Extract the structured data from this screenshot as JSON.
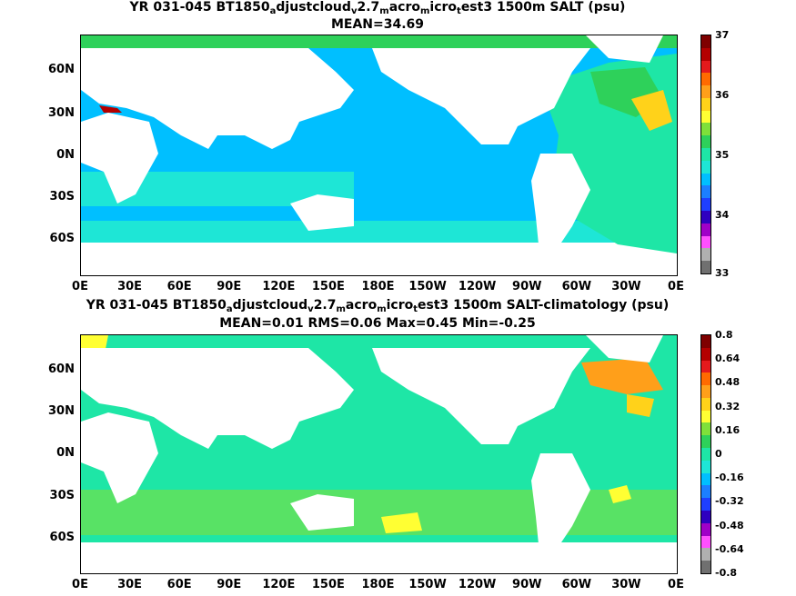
{
  "top_panel": {
    "title_parts": [
      "YR 031-045 BT1850",
      "a",
      "djustcloud",
      "v",
      "2.7",
      "m",
      "acro",
      "m",
      "icro",
      "t",
      "est3 1500m SALT (psu)"
    ],
    "subtitle": "MEAN=34.69",
    "lat_labels": [
      "60N",
      "30N",
      "0N",
      "30S",
      "60S"
    ],
    "lon_labels": [
      "0E",
      "30E",
      "60E",
      "90E",
      "120E",
      "150E",
      "180E",
      "150W",
      "120W",
      "90W",
      "60W",
      "30W",
      "0E"
    ],
    "colorbar_labels": [
      "37",
      "36",
      "35",
      "34",
      "33"
    ],
    "colors": [
      "#7f0000",
      "#b40000",
      "#e41a1c",
      "#ff6a00",
      "#ff9f1a",
      "#ffd21a",
      "#ffff33",
      "#7fe03a",
      "#2ed15a",
      "#1ee6a6",
      "#1ee6d6",
      "#00bfff",
      "#1c7fff",
      "#1f3fff",
      "#2f00c0",
      "#a000c8",
      "#ff50ff",
      "#b0b0b0",
      "#707070"
    ]
  },
  "bottom_panel": {
    "title_parts": [
      "YR 031-045 BT1850",
      "a",
      "djustcloud",
      "v",
      "2.7",
      "m",
      "acro",
      "m",
      "icro",
      "t",
      "est3 1500m SALT-climatology (psu)"
    ],
    "subtitle": "MEAN=0.01   RMS=0.06   Max=0.45   Min=-0.25",
    "lat_labels": [
      "60N",
      "30N",
      "0N",
      "30S",
      "60S"
    ],
    "lon_labels": [
      "0E",
      "30E",
      "60E",
      "90E",
      "120E",
      "150E",
      "180E",
      "150W",
      "120W",
      "90W",
      "60W",
      "30W",
      "0E"
    ],
    "colorbar_labels": [
      "0.8",
      "0.64",
      "0.48",
      "0.32",
      "0.16",
      "0",
      "-0.16",
      "-0.32",
      "-0.48",
      "-0.64",
      "-0.8"
    ],
    "colors": [
      "#7f0000",
      "#b40000",
      "#e41a1c",
      "#ff6a00",
      "#ff9f1a",
      "#ffd21a",
      "#ffff33",
      "#7fe03a",
      "#2ed15a",
      "#1ee6a6",
      "#1ee6d6",
      "#00bfff",
      "#1c7fff",
      "#1f3fff",
      "#2f00c0",
      "#a000c8",
      "#ff50ff",
      "#b0b0b0",
      "#707070"
    ]
  }
}
